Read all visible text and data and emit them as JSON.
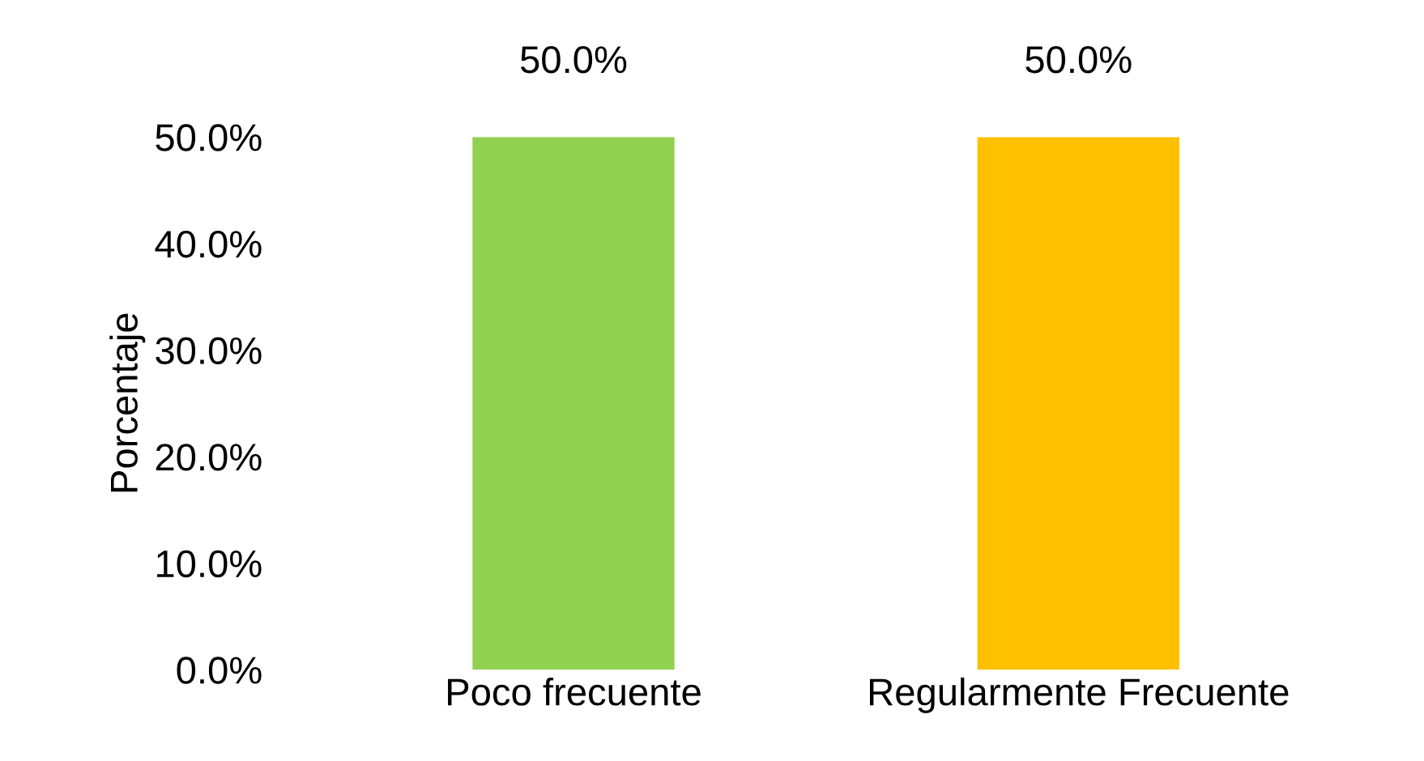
{
  "chart_data": {
    "type": "bar",
    "ylabel": "Porcentaje",
    "categories": [
      "Poco frecuente",
      "Regularmente Frecuente"
    ],
    "values": [
      50.0,
      50.0
    ],
    "colors": [
      "#92d050",
      "#ffc000"
    ],
    "value_labels": [
      "50.0%",
      "50.0%"
    ],
    "ylim": [
      0,
      50
    ],
    "yticks": [
      {
        "value": 0,
        "label": "0.0%"
      },
      {
        "value": 10,
        "label": "10.0%"
      },
      {
        "value": 20,
        "label": "20.0%"
      },
      {
        "value": 30,
        "label": "30.0%"
      },
      {
        "value": 40,
        "label": "40.0%"
      },
      {
        "value": 50,
        "label": "50.0%"
      }
    ]
  }
}
